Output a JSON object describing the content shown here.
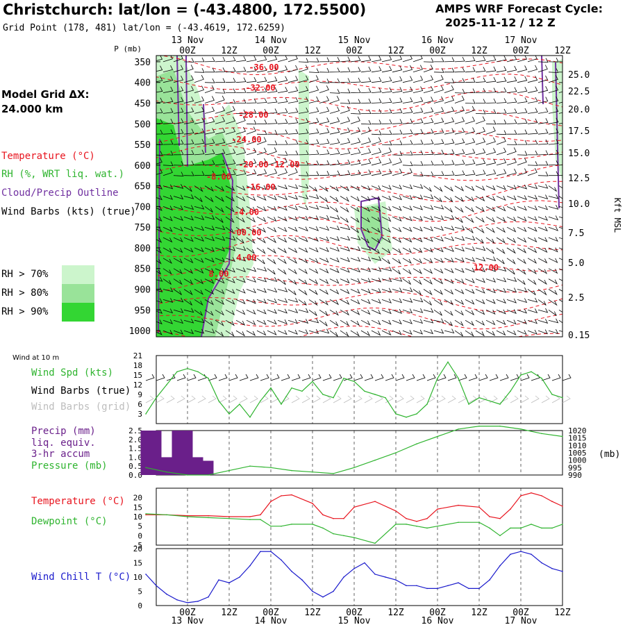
{
  "header": {
    "title": "Christchurch:  lat/lon = (-43.4800, 172.5500)",
    "grid_point": "Grid Point (178, 481) lat/lon = (-43.4619, 172.6259)",
    "cycle_line1": "AMPS WRF Forecast Cycle:",
    "cycle_line2": "2025-11-12 / 12  Z"
  },
  "sidebar": {
    "grid_label": "Model Grid ΔX:",
    "grid_value": " 24.000 km",
    "legend": [
      {
        "label": "Temperature (°C)",
        "color": "#e8141e"
      },
      {
        "label": "RH (%, WRT liq. wat.)",
        "color": "#2fb42f"
      },
      {
        "label": "Cloud/Precip Outline",
        "color": "#7030a0"
      },
      {
        "label": "Wind Barbs (kts) (true)",
        "color": "#000000"
      }
    ],
    "rh_levels": [
      {
        "label": "RH > 70%",
        "color": "#ccf5cc"
      },
      {
        "label": "RH > 80%",
        "color": "#99e399"
      },
      {
        "label": "RH > 90%",
        "color": "#33d633"
      }
    ]
  },
  "colors": {
    "temperature": "#e8141e",
    "rh": "#2fb42f",
    "cloud_outline": "#7030a0",
    "wind_chill": "#1a1acc",
    "precip_bar": "#6a1f8a",
    "barbs_grid": "#bdbdbd"
  },
  "time_axis": {
    "hour_labels": [
      "00Z",
      "12Z",
      "00Z",
      "12Z",
      "00Z",
      "12Z",
      "00Z",
      "12Z",
      "00Z",
      "12Z"
    ],
    "date_labels": [
      "13 Nov",
      "14 Nov",
      "15 Nov",
      "16 Nov",
      "17 Nov"
    ]
  },
  "chart_data": [
    {
      "type": "heatmap",
      "ylabel_left": "P (mb)",
      "ylabel_right": "Kft MSL",
      "pressure_ticks": [
        "350",
        "400",
        "450",
        "500",
        "550",
        "600",
        "650",
        "700",
        "750",
        "800",
        "850",
        "900",
        "950",
        "1000"
      ],
      "height_ticks": [
        "25.0",
        "22.5",
        "20.0",
        "17.5",
        "15.0",
        "12.5",
        "10.0",
        "7.5",
        "5.0",
        "2.5",
        "0.15"
      ],
      "x_hours": [
        -12,
        108
      ],
      "temperature_contour_labels": [
        {
          "text": "-36.00",
          "hour": 0,
          "p": 370
        },
        {
          "text": "-32.00",
          "hour": -1,
          "p": 420
        },
        {
          "text": "-28.00",
          "hour": -3,
          "p": 485
        },
        {
          "text": "-24.00",
          "hour": -5,
          "p": 545
        },
        {
          "text": "-20.00",
          "hour": -3,
          "p": 605
        },
        {
          "text": "-12.00",
          "hour": 6,
          "p": 605
        },
        {
          "text": "-8.00",
          "hour": -13,
          "p": 635
        },
        {
          "text": "-16.00",
          "hour": -1,
          "p": 660
        },
        {
          "text": "-4.00",
          "hour": -5,
          "p": 720
        },
        {
          "text": "-00.00",
          "hour": -5,
          "p": 770
        },
        {
          "text": "4.00",
          "hour": -5,
          "p": 830
        },
        {
          "text": "8.00",
          "hour": -13,
          "p": 870
        },
        {
          "text": "12.00",
          "hour": 64,
          "p": 855
        }
      ]
    },
    {
      "type": "line",
      "title": "Wind at 10 m",
      "series_label": "Wind Spd (kts)",
      "barbs_true_label": "Wind Barbs (true)",
      "barbs_grid_label": "Wind Barbs (grid)",
      "y_ticks": [
        "21",
        "18",
        "15",
        "12",
        "9",
        "6",
        "3"
      ],
      "ylim": [
        0,
        21
      ],
      "x": [
        -12,
        -9,
        -6,
        -3,
        0,
        3,
        6,
        9,
        12,
        15,
        18,
        21,
        24,
        27,
        30,
        33,
        36,
        39,
        42,
        45,
        48,
        51,
        54,
        57,
        60,
        63,
        66,
        69,
        72,
        75,
        78,
        81,
        84,
        87,
        90,
        93,
        96,
        99,
        102,
        105,
        108
      ],
      "values": [
        3,
        8,
        12,
        16,
        17,
        16,
        14,
        7,
        3,
        6,
        2,
        7,
        11,
        6,
        11,
        10,
        13,
        9,
        8,
        14,
        13,
        10,
        9,
        8,
        3,
        2,
        3,
        6,
        14,
        19,
        14,
        6,
        8,
        7,
        6,
        10,
        15,
        16,
        14,
        9,
        8
      ]
    },
    {
      "type": "bar",
      "series_label_1": "Precip (mm)",
      "series_label_2": "liq. equiv.",
      "series_label_3": "3-hr accum",
      "y_ticks": [
        "2.5",
        "2.0",
        "1.5",
        "1.0",
        "0.5",
        "0.0"
      ],
      "ylim": [
        0,
        2.5
      ],
      "x": [
        -12,
        -9,
        -6,
        -3,
        0,
        3,
        6
      ],
      "values": [
        2.5,
        2.5,
        1.0,
        2.5,
        2.5,
        1.0,
        0.8
      ]
    },
    {
      "type": "line",
      "series_label": "Pressure (mb)",
      "unit": "(mb)",
      "y_ticks": [
        "1020",
        "1015",
        "1010",
        "1005",
        "1000",
        "995",
        "990"
      ],
      "ylim": [
        990,
        1020
      ],
      "x": [
        -12,
        -6,
        0,
        6,
        12,
        18,
        24,
        30,
        36,
        42,
        48,
        54,
        60,
        66,
        72,
        78,
        84,
        90,
        96,
        102,
        108
      ],
      "values": [
        995,
        992,
        990,
        990,
        993,
        996,
        995,
        993,
        992,
        991,
        995,
        1000,
        1005,
        1011,
        1016,
        1021,
        1023,
        1023,
        1021,
        1018,
        1016
      ]
    },
    {
      "type": "line",
      "y_ticks": [
        "20",
        "15",
        "10",
        "5",
        "0",
        "-5"
      ],
      "ylim": [
        -5,
        25
      ],
      "x": [
        -12,
        -6,
        0,
        6,
        12,
        18,
        21,
        24,
        27,
        30,
        36,
        39,
        42,
        45,
        48,
        54,
        60,
        63,
        66,
        69,
        72,
        78,
        84,
        87,
        90,
        93,
        96,
        99,
        102,
        105,
        108
      ],
      "series": [
        {
          "name": "Temperature (°C)",
          "values": [
            11,
            11,
            10.5,
            10.5,
            10,
            10,
            11,
            18,
            21,
            21.5,
            17,
            11,
            9,
            9,
            15,
            18,
            13,
            9,
            7.5,
            9,
            14,
            16,
            15,
            10,
            9,
            14,
            21,
            22.5,
            21,
            18,
            15.5
          ]
        },
        {
          "name": "Dewpoint (°C)",
          "values": [
            11.5,
            11,
            10,
            9.5,
            9,
            8.5,
            8.5,
            5,
            5,
            6,
            6,
            4,
            1,
            0,
            -1,
            -4,
            6,
            6,
            5,
            4,
            5,
            7,
            7,
            4,
            0,
            4,
            4,
            6,
            4,
            4,
            6
          ]
        }
      ]
    },
    {
      "type": "line",
      "series_label": "Wind Chill T (°C)",
      "y_ticks": [
        "20",
        "15",
        "10",
        "5",
        "0"
      ],
      "ylim": [
        0,
        20
      ],
      "x": [
        -12,
        -9,
        -6,
        -3,
        0,
        3,
        6,
        9,
        12,
        15,
        18,
        21,
        24,
        27,
        30,
        33,
        36,
        39,
        42,
        45,
        48,
        51,
        54,
        57,
        60,
        63,
        66,
        69,
        72,
        75,
        78,
        81,
        84,
        87,
        90,
        93,
        96,
        99,
        102,
        105,
        108
      ],
      "values": [
        11,
        7,
        4,
        2,
        1,
        1.5,
        3,
        9,
        8,
        10,
        14,
        19,
        19,
        16,
        12,
        9,
        5,
        3,
        5,
        10,
        13,
        15,
        11,
        10,
        9,
        7,
        7,
        6,
        6,
        7,
        8,
        6,
        6,
        9,
        14,
        18,
        19,
        18,
        15,
        13,
        12
      ]
    }
  ]
}
